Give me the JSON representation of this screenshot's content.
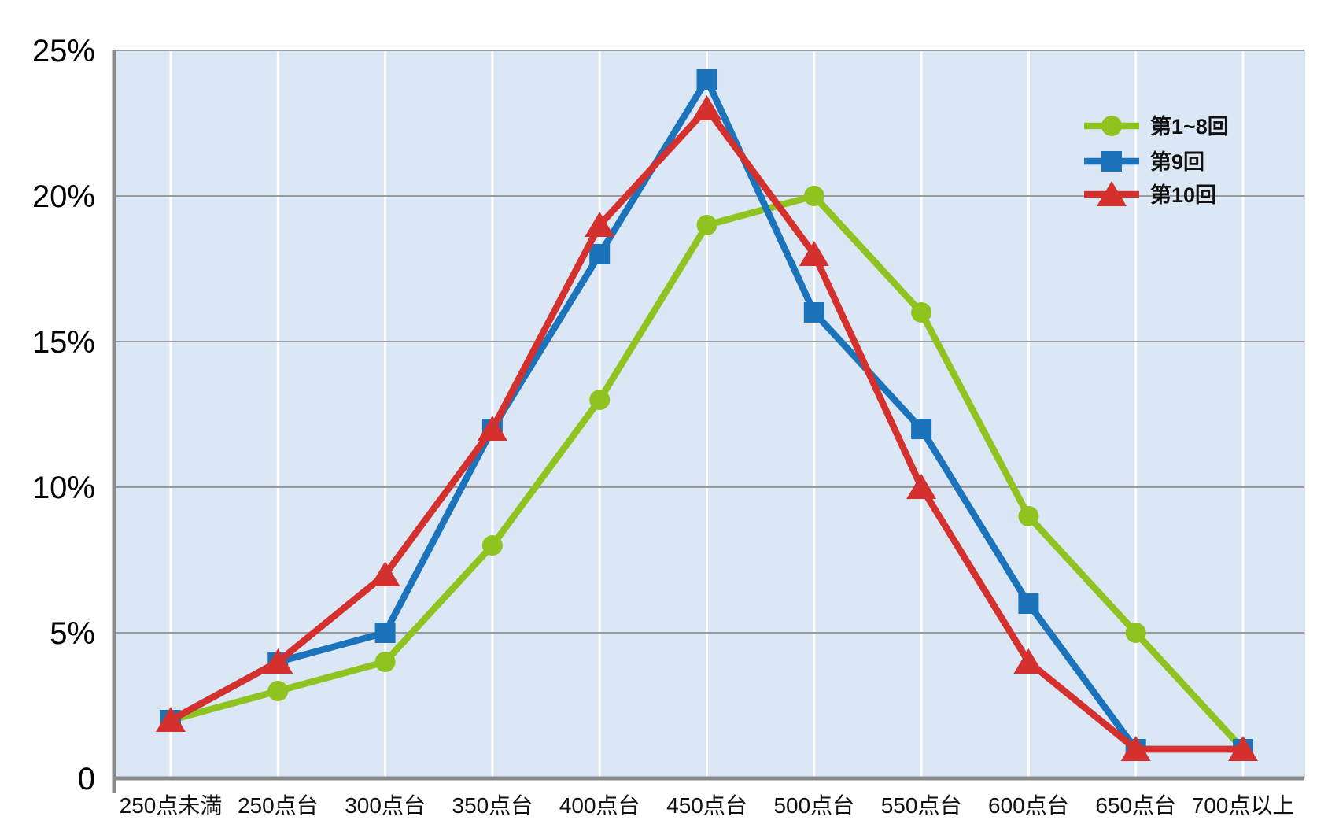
{
  "chart_data": {
    "type": "line",
    "categories": [
      "250点未満",
      "250点台",
      "300点台",
      "350点台",
      "400点台",
      "450点台",
      "500点台",
      "550点台",
      "600点台",
      "650点台",
      "700点以上"
    ],
    "series": [
      {
        "name": "第1~8回",
        "marker": "circle",
        "color": "#8fc31f",
        "values": [
          2,
          3,
          4,
          8,
          13,
          19,
          20,
          16,
          9,
          5,
          1
        ]
      },
      {
        "name": "第9回",
        "marker": "square",
        "color": "#1b74bb",
        "values": [
          2,
          4,
          5,
          12,
          18,
          24,
          16,
          12,
          6,
          1,
          1
        ]
      },
      {
        "name": "第10回",
        "marker": "triangle",
        "color": "#d3302e",
        "values": [
          2,
          4,
          7,
          12,
          19,
          23,
          18,
          10,
          4,
          1,
          1
        ]
      }
    ],
    "y_ticks": [
      {
        "value": 0,
        "label": "0"
      },
      {
        "value": 5,
        "label": "5%"
      },
      {
        "value": 10,
        "label": "10%"
      },
      {
        "value": 15,
        "label": "15%"
      },
      {
        "value": 20,
        "label": "20%"
      },
      {
        "value": 25,
        "label": "25%"
      }
    ],
    "ylim": [
      0,
      25
    ],
    "title": "",
    "xlabel": "",
    "ylabel": "",
    "legend_position": "top-right",
    "grid": {
      "horizontal": true,
      "vertical": true
    },
    "colors": {
      "plot_background": "#dbe7f4",
      "vertical_grid": "#ffffff",
      "horizontal_grid": "#9b9b9b",
      "axis": "#8a8a8a",
      "plot_border": "#b3bdc9",
      "label": "#111111"
    }
  }
}
